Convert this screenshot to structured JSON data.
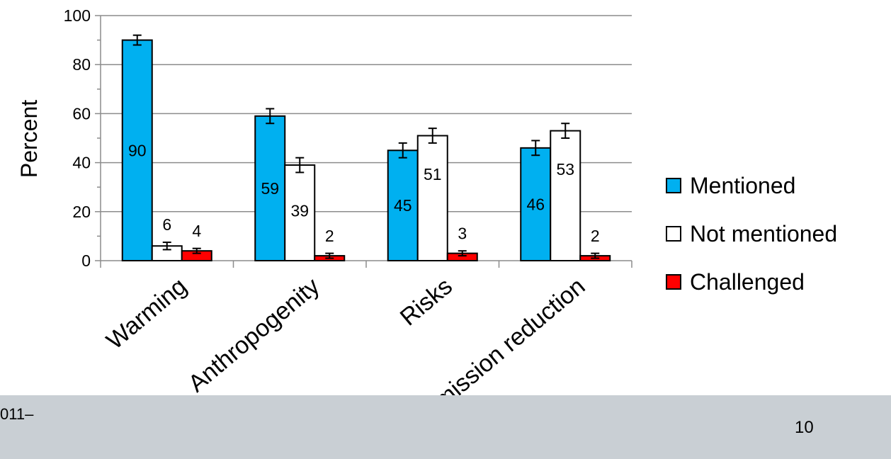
{
  "footer": {
    "left_text": "011–",
    "page_number": "10"
  },
  "chart_data": {
    "type": "bar",
    "ylabel": "Percent",
    "xlabel": "",
    "ylim": [
      0,
      100
    ],
    "yticks": [
      0,
      20,
      40,
      60,
      80,
      100
    ],
    "grid": true,
    "legend_position": "right",
    "categories": [
      "Warming",
      "Anthropogenity",
      "Risks",
      "Emission reduction"
    ],
    "series": [
      {
        "name": "Mentioned",
        "color": "#00b0f0",
        "values": [
          90,
          59,
          45,
          46
        ],
        "errors": [
          2,
          3,
          3,
          3
        ]
      },
      {
        "name": "Not mentioned",
        "color": "#ffffff",
        "values": [
          6,
          39,
          51,
          53
        ],
        "errors": [
          1.5,
          3,
          3,
          3
        ]
      },
      {
        "name": "Challenged",
        "color": "#ff0000",
        "values": [
          4,
          2,
          3,
          2
        ],
        "errors": [
          1,
          1,
          1,
          1
        ]
      }
    ]
  }
}
